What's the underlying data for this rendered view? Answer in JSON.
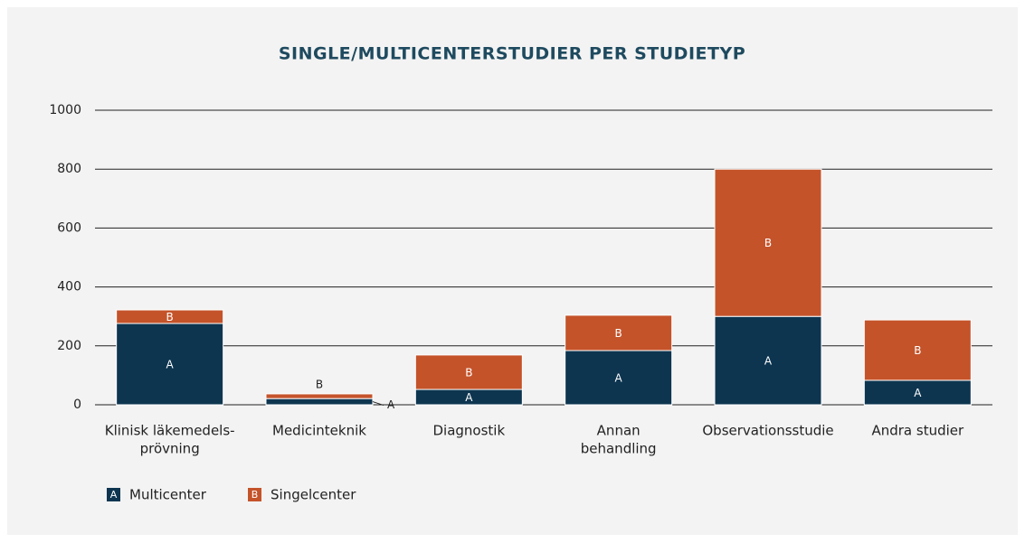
{
  "chart_data": {
    "type": "stacked_bar",
    "title": "SINGLE/MULTICENTERSTUDIER PER STUDIETYP",
    "categories": [
      [
        "Klinisk läkemedels-",
        "prövning"
      ],
      [
        "Medicinteknik"
      ],
      [
        "Diagnostik"
      ],
      [
        "Annan",
        "behandling"
      ],
      [
        "Observationsstudie"
      ],
      [
        "Andra studier"
      ]
    ],
    "series": [
      {
        "name": "Multicenter",
        "label": "A",
        "color": "#0d3550",
        "values": [
          276,
          21,
          52,
          184,
          300,
          83
        ]
      },
      {
        "name": "Singelcenter",
        "label": "B",
        "color": "#c4532a",
        "values": [
          46,
          16,
          117,
          120,
          500,
          205
        ]
      }
    ],
    "ylim": [
      0,
      1000
    ],
    "yticks": [
      0,
      200,
      400,
      600,
      800,
      1000
    ],
    "grid": true
  }
}
